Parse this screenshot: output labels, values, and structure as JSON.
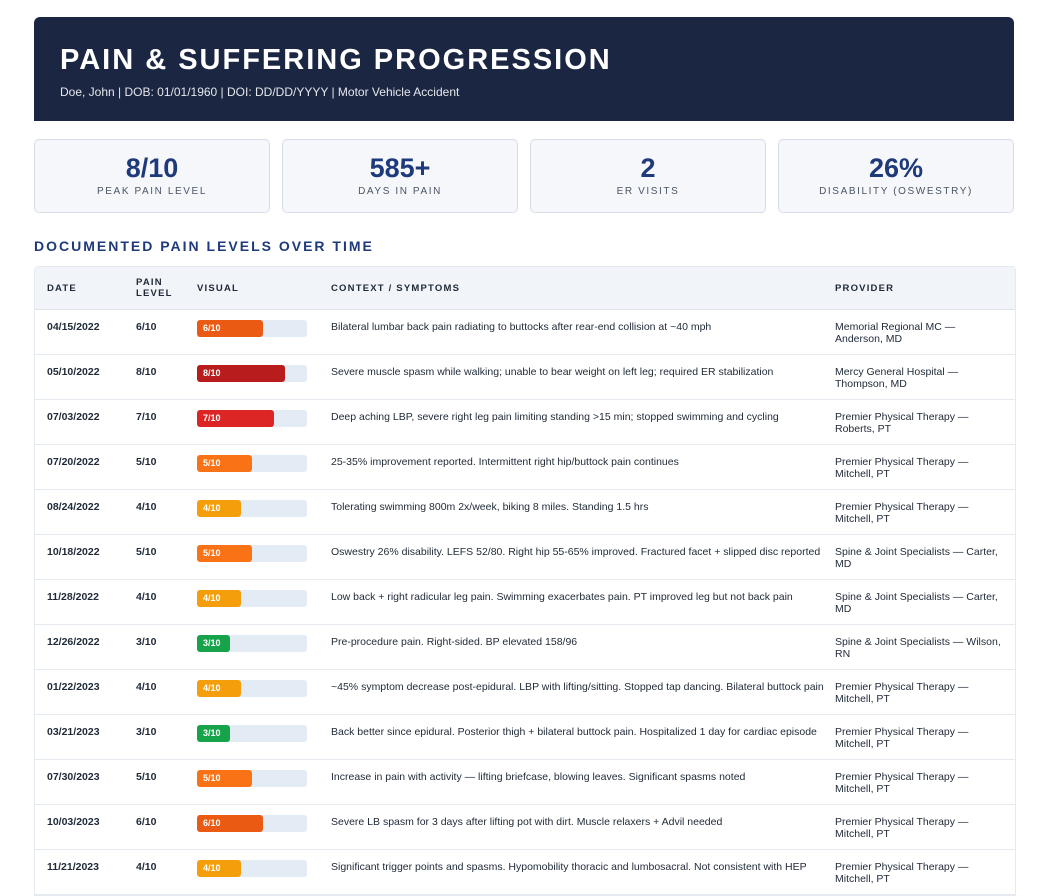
{
  "header": {
    "title": "PAIN & SUFFERING PROGRESSION",
    "subtitle": "Doe, John | DOB: 01/01/1960 | DOI: DD/DD/YYYY | Motor Vehicle Accident"
  },
  "stats": [
    {
      "value": "8/10",
      "label": "PEAK PAIN LEVEL"
    },
    {
      "value": "585+",
      "label": "DAYS IN PAIN"
    },
    {
      "value": "2",
      "label": "ER VISITS"
    },
    {
      "value": "26%",
      "label": "DISABILITY (OSWESTRY)"
    }
  ],
  "section_title": "DOCUMENTED PAIN LEVELS OVER TIME",
  "table": {
    "headers": {
      "date": "DATE",
      "level": "PAIN LEVEL",
      "visual": "VISUAL",
      "context": "CONTEXT / SYMPTOMS",
      "provider": "PROVIDER"
    },
    "rows": [
      {
        "date": "04/15/2022",
        "level": "6/10",
        "score": 6,
        "color": "#ea5a12",
        "context": "Bilateral lumbar back pain radiating to buttocks after rear-end collision at ~40 mph",
        "provider": "Memorial Regional MC — Anderson, MD"
      },
      {
        "date": "05/10/2022",
        "level": "8/10",
        "score": 8,
        "color": "#b91c1c",
        "context": "Severe muscle spasm while walking; unable to bear weight on left leg; required ER stabilization",
        "provider": "Mercy General Hospital — Thompson, MD"
      },
      {
        "date": "07/03/2022",
        "level": "7/10",
        "score": 7,
        "color": "#dc2626",
        "context": "Deep aching LBP, severe right leg pain limiting standing >15 min; stopped swimming and cycling",
        "provider": "Premier Physical Therapy — Roberts, PT"
      },
      {
        "date": "07/20/2022",
        "level": "5/10",
        "score": 5,
        "color": "#f97316",
        "context": "25-35% improvement reported. Intermittent right hip/buttock pain continues",
        "provider": "Premier Physical Therapy — Mitchell, PT"
      },
      {
        "date": "08/24/2022",
        "level": "4/10",
        "score": 4,
        "color": "#f59e0b",
        "context": "Tolerating swimming 800m 2x/week, biking 8 miles. Standing 1.5 hrs",
        "provider": "Premier Physical Therapy — Mitchell, PT"
      },
      {
        "date": "10/18/2022",
        "level": "5/10",
        "score": 5,
        "color": "#f97316",
        "context": "Oswestry 26% disability. LEFS 52/80. Right hip 55-65% improved. Fractured facet + slipped disc reported",
        "provider": "Spine & Joint Specialists — Carter, MD"
      },
      {
        "date": "11/28/2022",
        "level": "4/10",
        "score": 4,
        "color": "#f59e0b",
        "context": "Low back + right radicular leg pain. Swimming exacerbates pain. PT improved leg but not back pain",
        "provider": "Spine & Joint Specialists — Carter, MD"
      },
      {
        "date": "12/26/2022",
        "level": "3/10",
        "score": 3,
        "color": "#16a34a",
        "context": "Pre-procedure pain. Right-sided. BP elevated 158/96",
        "provider": "Spine & Joint Specialists — Wilson, RN"
      },
      {
        "date": "01/22/2023",
        "level": "4/10",
        "score": 4,
        "color": "#f59e0b",
        "context": "~45% symptom decrease post-epidural. LBP with lifting/sitting. Stopped tap dancing. Bilateral buttock pain",
        "provider": "Premier Physical Therapy — Mitchell, PT"
      },
      {
        "date": "03/21/2023",
        "level": "3/10",
        "score": 3,
        "color": "#16a34a",
        "context": "Back better since epidural. Posterior thigh + bilateral buttock pain. Hospitalized 1 day for cardiac episode",
        "provider": "Premier Physical Therapy — Mitchell, PT"
      },
      {
        "date": "07/30/2023",
        "level": "5/10",
        "score": 5,
        "color": "#f97316",
        "context": "Increase in pain with activity — lifting briefcase, blowing leaves. Significant spasms noted",
        "provider": "Premier Physical Therapy — Mitchell, PT"
      },
      {
        "date": "10/03/2023",
        "level": "6/10",
        "score": 6,
        "color": "#ea5a12",
        "context": "Severe LB spasm for 3 days after lifting pot with dirt. Muscle relaxers + Advil needed",
        "provider": "Premier Physical Therapy — Mitchell, PT"
      },
      {
        "date": "11/21/2023",
        "level": "4/10",
        "score": 4,
        "color": "#f59e0b",
        "context": "Significant trigger points and spasms. Hypomobility thoracic and lumbosacral. Not consistent with HEP",
        "provider": "Premier Physical Therapy — Mitchell, PT"
      }
    ]
  }
}
